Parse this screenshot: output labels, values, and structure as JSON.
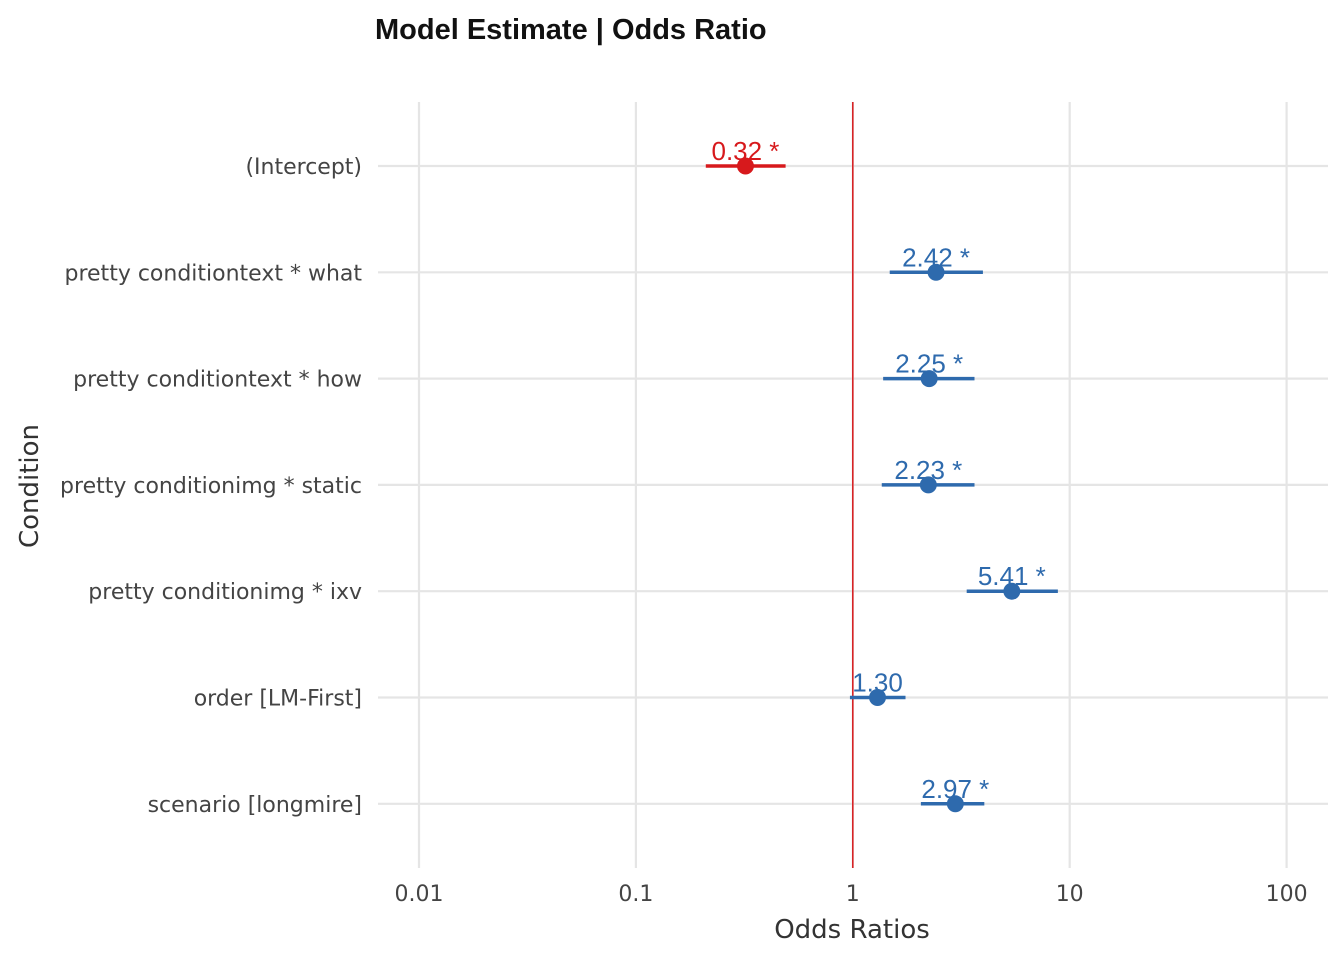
{
  "chart_data": {
    "type": "scatter",
    "subtype": "forest-plot",
    "title": "Model Estimate | Odds Ratio",
    "xlabel": "Odds Ratios",
    "ylabel": "Condition",
    "x_scale": "log10",
    "xlim": [
      0.005,
      150
    ],
    "x_ticks": [
      0.01,
      0.1,
      1,
      10,
      100
    ],
    "x_tick_labels": [
      "0.01",
      "0.1",
      "1",
      "10",
      "100"
    ],
    "reference_line": 1,
    "reference_color": "#d7191c",
    "grid": true,
    "colors": {
      "negative": "#d7191c",
      "positive": "#2e6aad"
    },
    "terms": [
      {
        "label": "(Intercept)",
        "estimate": 0.32,
        "lower": 0.21,
        "upper": 0.49,
        "text": "0.32 *",
        "direction": "negative"
      },
      {
        "label": "pretty conditiontext * what",
        "estimate": 2.42,
        "lower": 1.48,
        "upper": 3.98,
        "text": "2.42 *",
        "direction": "positive"
      },
      {
        "label": "pretty conditiontext * how",
        "estimate": 2.25,
        "lower": 1.38,
        "upper": 3.64,
        "text": "2.25 *",
        "direction": "positive"
      },
      {
        "label": "pretty conditionimg * static",
        "estimate": 2.23,
        "lower": 1.36,
        "upper": 3.64,
        "text": "2.23 *",
        "direction": "positive"
      },
      {
        "label": "pretty conditionimg * ixv",
        "estimate": 5.41,
        "lower": 3.35,
        "upper": 8.82,
        "text": "5.41 *",
        "direction": "positive"
      },
      {
        "label": "order [LM-First]",
        "estimate": 1.3,
        "lower": 0.97,
        "upper": 1.75,
        "text": "1.30",
        "direction": "positive"
      },
      {
        "label": "scenario [longmire]",
        "estimate": 2.97,
        "lower": 2.06,
        "upper": 4.04,
        "text": "2.97 *",
        "direction": "positive"
      }
    ]
  }
}
